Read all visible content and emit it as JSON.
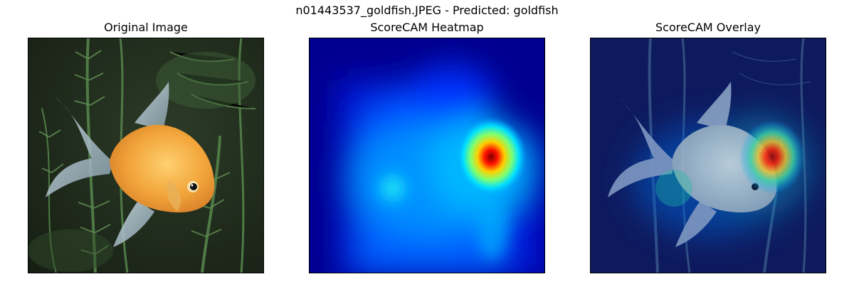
{
  "figure": {
    "suptitle": "n01443537_goldfish.JPEG - Predicted: goldfish"
  },
  "panels": [
    {
      "title": "Original Image",
      "content": "goldfish-photo"
    },
    {
      "title": "ScoreCAM Heatmap",
      "content": "jet-heatmap"
    },
    {
      "title": "ScoreCAM Overlay",
      "content": "heatmap-overlay"
    }
  ],
  "colors": {
    "background": "#ffffff",
    "water_dark": "#1a2418",
    "plant_green": "#4f7a45",
    "fish_orange": "#f2a53a",
    "fin_blue_grey": "#9fb7c4",
    "heat_low": "#00008f",
    "heat_mid": "#00d0ff",
    "heat_high": "#ff2000",
    "heat_peak": "#800000"
  }
}
